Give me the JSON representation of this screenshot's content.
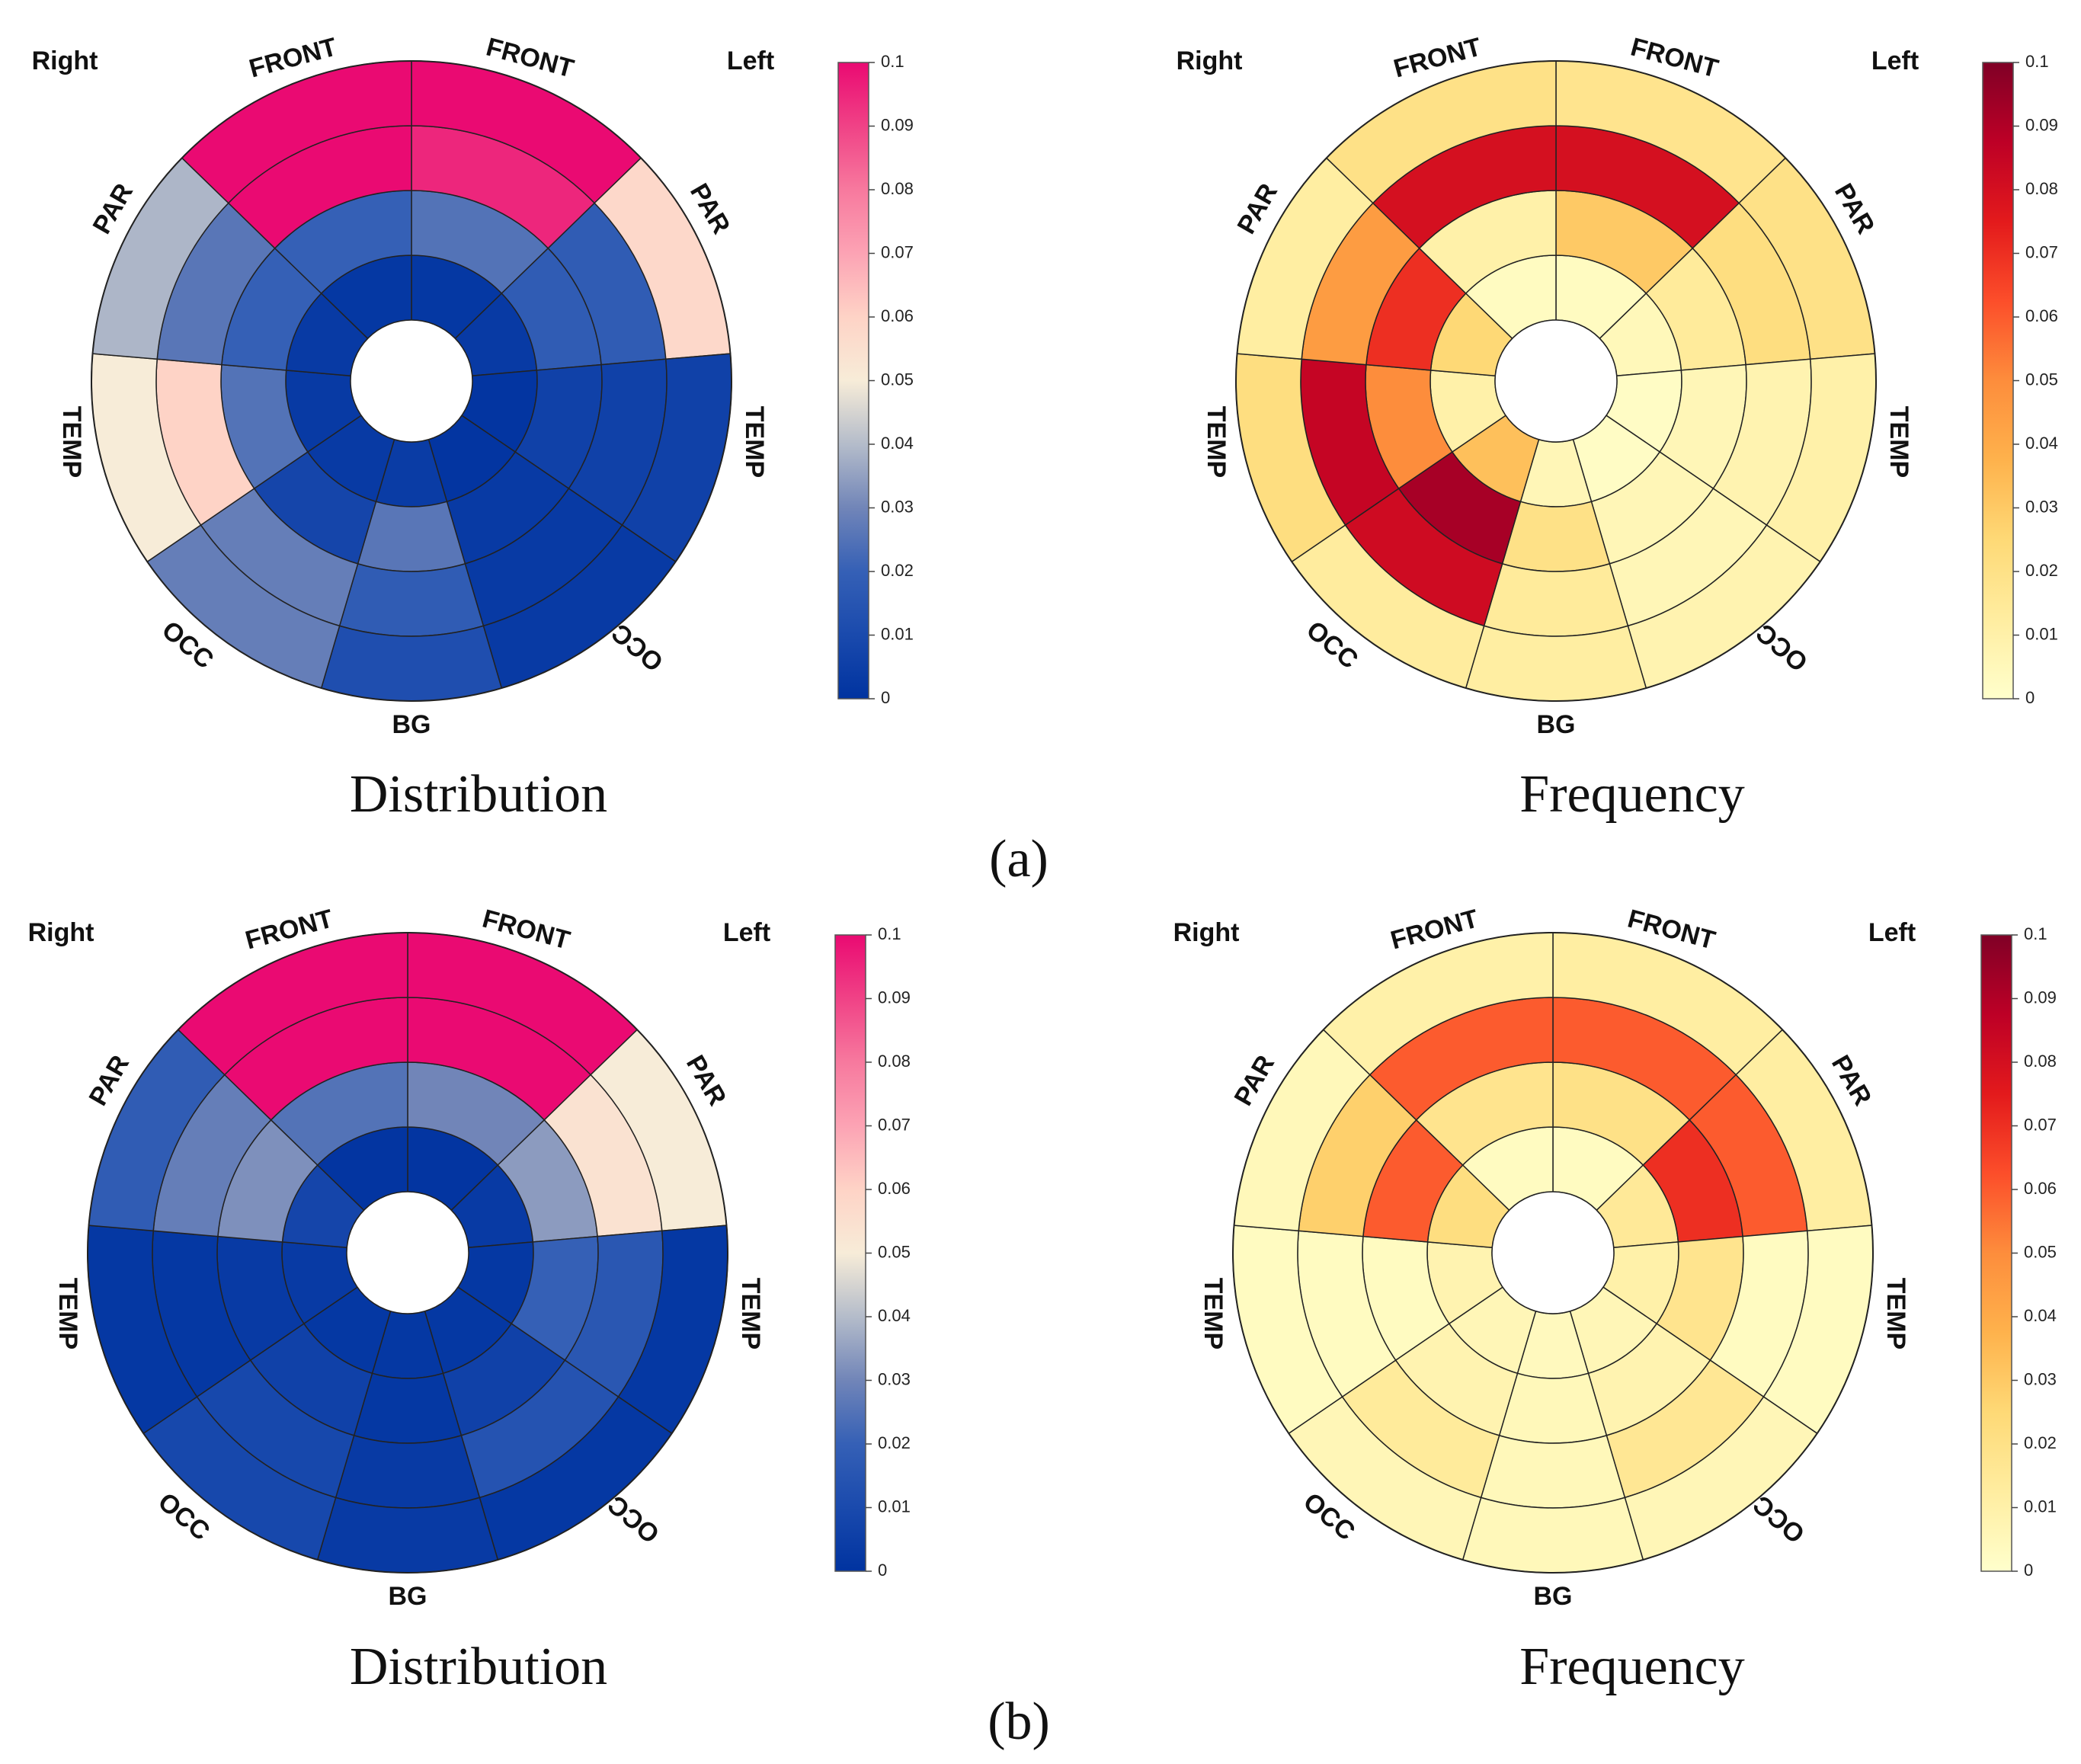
{
  "figure": {
    "panels": [
      {
        "id": "a",
        "caption": "(a)",
        "charts": [
          {
            "title": "Distribution",
            "colormap": "bluepink",
            "labels": {
              "right": "Right",
              "left": "Left",
              "front_r": "FRONT",
              "front_l": "FRONT",
              "par_r": "PAR",
              "par_l": "PAR",
              "temp_r": "TEMP",
              "temp_l": "TEMP",
              "occ_r": "OCC",
              "occ_l": "OCC",
              "bg": "BG"
            },
            "colorbar_ticks": [
              "0",
              "0.01",
              "0.02",
              "0.03",
              "0.04",
              "0.05",
              "0.06",
              "0.07",
              "0.08",
              "0.09",
              "0.1"
            ]
          },
          {
            "title": "Frequency",
            "colormap": "hot",
            "labels": {
              "right": "Right",
              "left": "Left",
              "front_r": "FRONT",
              "front_l": "FRONT",
              "par_r": "PAR",
              "par_l": "PAR",
              "temp_r": "TEMP",
              "temp_l": "TEMP",
              "occ_r": "OCC",
              "occ_l": "OCC",
              "bg": "BG"
            },
            "colorbar_ticks": [
              "0",
              "0.01",
              "0.02",
              "0.03",
              "0.04",
              "0.05",
              "0.06",
              "0.07",
              "0.08",
              "0.09",
              "0.1"
            ]
          }
        ]
      },
      {
        "id": "b",
        "caption": "(b)",
        "charts": [
          {
            "title": "Distribution",
            "colormap": "bluepink",
            "labels": {
              "right": "Right",
              "left": "Left",
              "front_r": "FRONT",
              "front_l": "FRONT",
              "par_r": "PAR",
              "par_l": "PAR",
              "temp_r": "TEMP",
              "temp_l": "TEMP",
              "occ_r": "OCC",
              "occ_l": "OCC",
              "bg": "BG"
            },
            "colorbar_ticks": [
              "0",
              "0.01",
              "0.02",
              "0.03",
              "0.04",
              "0.05",
              "0.06",
              "0.07",
              "0.08",
              "0.09",
              "0.1"
            ]
          },
          {
            "title": "Frequency",
            "colormap": "hot",
            "labels": {
              "right": "Right",
              "left": "Left",
              "front_r": "FRONT",
              "front_l": "FRONT",
              "par_r": "PAR",
              "par_l": "PAR",
              "temp_r": "TEMP",
              "temp_l": "TEMP",
              "occ_r": "OCC",
              "occ_l": "OCC",
              "bg": "BG"
            },
            "colorbar_ticks": [
              "0",
              "0.01",
              "0.02",
              "0.03",
              "0.04",
              "0.05",
              "0.06",
              "0.07",
              "0.08",
              "0.09",
              "0.1"
            ]
          }
        ]
      }
    ]
  },
  "chart_data": [
    {
      "type": "heatmap",
      "panel": "a",
      "title": "Distribution",
      "layout": "polar bullseye, 4 rings (inner to outer), 9 sectors clockwise from top: FRONT-L, PAR-L, TEMP-L, OCC-L, BG, OCC-R, TEMP-R, PAR-R, FRONT-R",
      "sectors": [
        "FRONT-L",
        "PAR-L",
        "TEMP-L",
        "OCC-L",
        "BG",
        "OCC-R",
        "TEMP-R",
        "PAR-R",
        "FRONT-R"
      ],
      "rings": [
        "ring1",
        "ring2",
        "ring3",
        "ring4"
      ],
      "values": [
        [
          0.002,
          0.025,
          0.095,
          0.1
        ],
        [
          0.003,
          0.018,
          0.018,
          0.058
        ],
        [
          0.001,
          0.006,
          0.006,
          0.006
        ],
        [
          0.001,
          0.003,
          0.003,
          0.003
        ],
        [
          0.004,
          0.026,
          0.018,
          0.012
        ],
        [
          0.003,
          0.008,
          0.028,
          0.028
        ],
        [
          0.003,
          0.025,
          0.06,
          0.05
        ],
        [
          0.003,
          0.02,
          0.026,
          0.039
        ],
        [
          0.002,
          0.02,
          0.1,
          0.1
        ]
      ],
      "colorbar": {
        "min": 0,
        "max": 0.1,
        "ticks": [
          0,
          0.01,
          0.02,
          0.03,
          0.04,
          0.05,
          0.06,
          0.07,
          0.08,
          0.09,
          0.1
        ]
      }
    },
    {
      "type": "heatmap",
      "panel": "a",
      "title": "Frequency",
      "layout": "polar bullseye, 4 rings (inner to outer), 9 sectors clockwise from top: FRONT-L, PAR-L, TEMP-L, OCC-L, BG, OCC-R, TEMP-R, PAR-R, FRONT-R",
      "sectors": [
        "FRONT-L",
        "PAR-L",
        "TEMP-L",
        "OCC-L",
        "BG",
        "OCC-R",
        "TEMP-R",
        "PAR-R",
        "FRONT-R"
      ],
      "rings": [
        "ring1",
        "ring2",
        "ring3",
        "ring4"
      ],
      "values": [
        [
          0.003,
          0.03,
          0.08,
          0.018
        ],
        [
          0.005,
          0.014,
          0.022,
          0.02
        ],
        [
          0.002,
          0.006,
          0.008,
          0.01
        ],
        [
          0.002,
          0.006,
          0.006,
          0.008
        ],
        [
          0.006,
          0.02,
          0.014,
          0.012
        ],
        [
          0.033,
          0.092,
          0.082,
          0.013
        ],
        [
          0.01,
          0.05,
          0.085,
          0.022
        ],
        [
          0.025,
          0.07,
          0.045,
          0.012
        ],
        [
          0.003,
          0.01,
          0.08,
          0.02
        ]
      ],
      "colorbar": {
        "min": 0,
        "max": 0.1,
        "ticks": [
          0,
          0.01,
          0.02,
          0.03,
          0.04,
          0.05,
          0.06,
          0.07,
          0.08,
          0.09,
          0.1
        ]
      }
    },
    {
      "type": "heatmap",
      "panel": "b",
      "title": "Distribution",
      "layout": "polar bullseye, 4 rings (inner to outer), 9 sectors clockwise from top: FRONT-L, PAR-L, TEMP-L, OCC-L, BG, OCC-R, TEMP-R, PAR-R, FRONT-R",
      "sectors": [
        "FRONT-L",
        "PAR-L",
        "TEMP-L",
        "OCC-L",
        "BG",
        "OCC-R",
        "TEMP-R",
        "PAR-R",
        "FRONT-R"
      ],
      "rings": [
        "ring1",
        "ring2",
        "ring3",
        "ring4"
      ],
      "values": [
        [
          0.001,
          0.03,
          0.1,
          0.1
        ],
        [
          0.003,
          0.034,
          0.054,
          0.05
        ],
        [
          0.002,
          0.02,
          0.016,
          0.002
        ],
        [
          0.002,
          0.006,
          0.014,
          0.002
        ],
        [
          0.002,
          0.002,
          0.003,
          0.003
        ],
        [
          0.002,
          0.006,
          0.009,
          0.009
        ],
        [
          0.003,
          0.003,
          0.002,
          0.002
        ],
        [
          0.008,
          0.032,
          0.028,
          0.018
        ],
        [
          0.001,
          0.025,
          0.1,
          0.1
        ]
      ],
      "colorbar": {
        "min": 0,
        "max": 0.1,
        "ticks": [
          0,
          0.01,
          0.02,
          0.03,
          0.04,
          0.05,
          0.06,
          0.07,
          0.08,
          0.09,
          0.1
        ]
      }
    },
    {
      "type": "heatmap",
      "panel": "b",
      "title": "Frequency",
      "layout": "polar bullseye, 4 rings (inner to outer), 9 sectors clockwise from top: FRONT-L, PAR-L, TEMP-L, OCC-L, BG, OCC-R, TEMP-R, PAR-R, FRONT-R",
      "sectors": [
        "FRONT-L",
        "PAR-L",
        "TEMP-L",
        "OCC-L",
        "BG",
        "OCC-R",
        "TEMP-R",
        "PAR-R",
        "FRONT-R"
      ],
      "rings": [
        "ring1",
        "ring2",
        "ring3",
        "ring4"
      ],
      "values": [
        [
          0.003,
          0.02,
          0.06,
          0.012
        ],
        [
          0.015,
          0.07,
          0.06,
          0.012
        ],
        [
          0.01,
          0.018,
          0.003,
          0.003
        ],
        [
          0.006,
          0.008,
          0.016,
          0.006
        ],
        [
          0.004,
          0.005,
          0.005,
          0.005
        ],
        [
          0.006,
          0.008,
          0.014,
          0.006
        ],
        [
          0.008,
          0.003,
          0.003,
          0.003
        ],
        [
          0.022,
          0.06,
          0.028,
          0.005
        ],
        [
          0.003,
          0.018,
          0.06,
          0.01
        ]
      ],
      "colorbar": {
        "min": 0,
        "max": 0.1,
        "ticks": [
          0,
          0.01,
          0.02,
          0.03,
          0.04,
          0.05,
          0.06,
          0.07,
          0.08,
          0.09,
          0.1
        ]
      }
    }
  ]
}
